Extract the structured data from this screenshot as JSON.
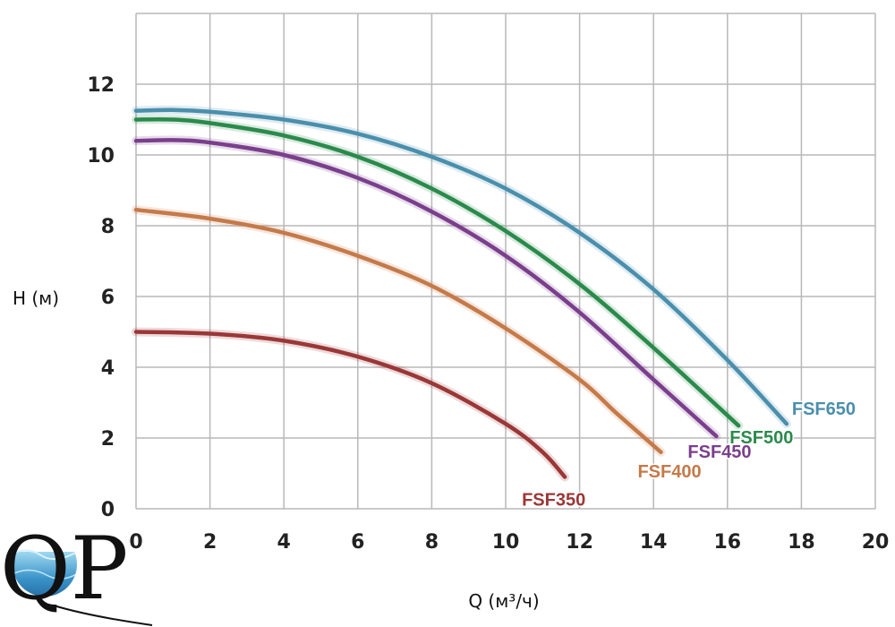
{
  "chart_data": {
    "type": "line",
    "xlabel": "Q (м³/ч)",
    "ylabel": "H (м)",
    "xlim": [
      0,
      20
    ],
    "ylim": [
      0,
      14
    ],
    "xticks": [
      "0",
      "2",
      "4",
      "6",
      "8",
      "10",
      "12",
      "14",
      "16",
      "18",
      "20"
    ],
    "yticks": [
      "0",
      "2",
      "4",
      "6",
      "8",
      "10",
      "12"
    ],
    "grid": true,
    "series": [
      {
        "name": "FSF350",
        "color": "#9b3737",
        "x": [
          0,
          2,
          4,
          6,
          8,
          10,
          11,
          11.6
        ],
        "y": [
          5.0,
          4.95,
          4.75,
          4.3,
          3.55,
          2.4,
          1.6,
          0.9
        ]
      },
      {
        "name": "FSF400",
        "color": "#c57a49",
        "x": [
          0,
          2,
          4,
          6,
          8,
          10,
          12,
          13,
          14.2
        ],
        "y": [
          8.45,
          8.2,
          7.8,
          7.15,
          6.3,
          5.1,
          3.65,
          2.7,
          1.6
        ]
      },
      {
        "name": "FSF450",
        "color": "#7a3f8c",
        "x": [
          0,
          1,
          2,
          4,
          6,
          8,
          10,
          12,
          14,
          15.7
        ],
        "y": [
          10.4,
          10.42,
          10.35,
          10.0,
          9.35,
          8.4,
          7.15,
          5.55,
          3.65,
          2.05
        ]
      },
      {
        "name": "FSF500",
        "color": "#2a8a4c",
        "x": [
          0,
          1,
          2,
          4,
          6,
          8,
          10,
          12,
          14,
          16.3
        ],
        "y": [
          11.0,
          11.0,
          10.9,
          10.55,
          9.95,
          9.05,
          7.85,
          6.35,
          4.55,
          2.35
        ]
      },
      {
        "name": "FSF650",
        "color": "#4a8fac",
        "x": [
          0,
          1,
          2,
          4,
          6,
          8,
          10,
          12,
          14,
          16,
          17.6
        ],
        "y": [
          11.25,
          11.27,
          11.22,
          11.0,
          10.6,
          9.95,
          9.05,
          7.8,
          6.2,
          4.2,
          2.4
        ]
      }
    ]
  },
  "logo": {
    "text": "QP"
  }
}
